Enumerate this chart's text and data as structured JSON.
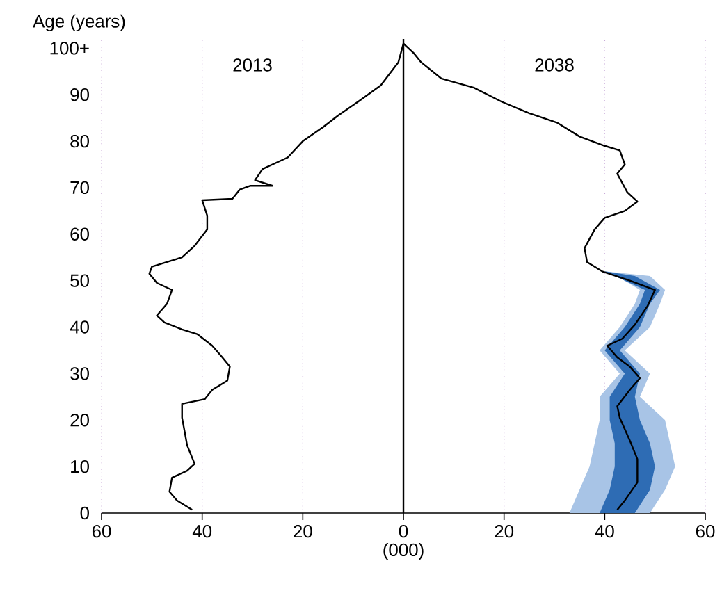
{
  "chart_data": {
    "type": "line",
    "ylabel": "Age (years)",
    "xlabel": "(000)",
    "xlim": [
      -60,
      60
    ],
    "ylim": [
      0,
      102
    ],
    "xticks": [
      {
        "value": -60,
        "label": "60"
      },
      {
        "value": -40,
        "label": "40"
      },
      {
        "value": -20,
        "label": "20"
      },
      0,
      20,
      40,
      60
    ],
    "yticks": [
      0,
      10,
      20,
      30,
      40,
      50,
      60,
      70,
      80,
      90,
      {
        "value": 100,
        "label": "100+"
      }
    ],
    "grid": "x",
    "annotations": [
      "2013",
      "2038"
    ],
    "ref_lines": [
      {
        "axis": "x",
        "value": 0,
        "color": "#000000"
      }
    ],
    "series": [
      {
        "type": "area",
        "color": "#a8c4e6",
        "x": [
          33,
          35,
          37,
          38,
          39,
          39,
          43,
          39,
          43,
          46,
          47,
          44,
          40,
          49,
          52,
          51,
          49,
          44,
          49,
          47,
          52,
          53,
          54,
          52,
          49
        ],
        "values": [
          0,
          5,
          10,
          15,
          20,
          25,
          30,
          35,
          40,
          45,
          48,
          50,
          52,
          51,
          48,
          45,
          40,
          35,
          30,
          25,
          20,
          15,
          10,
          5,
          0
        ]
      },
      {
        "type": "area",
        "color": "#2e6cb4",
        "x": [
          39,
          41,
          42,
          42,
          41,
          41,
          44,
          40,
          44,
          47,
          48,
          44,
          40,
          46,
          51,
          49,
          47,
          43,
          47,
          46,
          47,
          49,
          50,
          49,
          46
        ],
        "values": [
          0,
          5,
          10,
          15,
          20,
          25,
          30,
          35,
          40,
          45,
          48,
          50,
          52,
          51,
          48,
          45,
          40,
          35,
          30,
          25,
          20,
          15,
          10,
          5,
          0
        ]
      },
      {
        "color": "#000000",
        "x": [
          -42,
          -45,
          -46.5,
          -46,
          -43,
          -41.5,
          -43,
          -43.5,
          -44,
          -44,
          -39.5,
          -38,
          -35,
          -34.5,
          -36,
          -38,
          -41,
          -44,
          -47.5,
          -49,
          -47,
          -46,
          -49,
          -50.5,
          -50,
          -47,
          -44,
          -41.5,
          -39,
          -39,
          -40,
          -34,
          -32.5,
          -30.5,
          -26,
          -29.5,
          -28,
          -23,
          -20,
          -16,
          -13,
          -9,
          -4.5,
          -1,
          0
        ],
        "values": [
          0.7,
          2.7,
          4.6,
          7.6,
          9.1,
          10.6,
          14.6,
          17.6,
          20.5,
          23.5,
          24.5,
          26.5,
          28.5,
          31.5,
          33.5,
          36,
          38.5,
          39.5,
          41,
          42.5,
          45,
          48,
          49.5,
          51.5,
          53,
          54,
          55,
          57.5,
          61,
          64,
          67.3,
          67.6,
          69.6,
          70.4,
          70.4,
          71.6,
          74,
          76.5,
          80,
          83,
          85.5,
          88.5,
          92,
          97,
          101
        ]
      },
      {
        "color": "#000000",
        "x": [
          42.5,
          44,
          46.5,
          46.5,
          45,
          43,
          42.5,
          45,
          47,
          45,
          42.5,
          40.5,
          43.5,
          46,
          48.5,
          50,
          45,
          39.5,
          36.5,
          36,
          38,
          40,
          44,
          46.5,
          44.5,
          42.5,
          44,
          43,
          40,
          35,
          30.5,
          25,
          19.5,
          14,
          7.5,
          3.5,
          2,
          0
        ],
        "values": [
          0.7,
          2.7,
          6.6,
          11.6,
          15.6,
          20.5,
          23,
          26.5,
          29,
          31.5,
          33.5,
          36,
          37.5,
          40.5,
          44.5,
          48,
          50,
          52,
          54,
          57,
          61,
          63.5,
          65,
          67,
          69,
          73,
          75,
          78,
          79,
          81,
          84,
          86,
          88.5,
          91.5,
          93.5,
          97,
          99,
          101
        ]
      }
    ]
  }
}
